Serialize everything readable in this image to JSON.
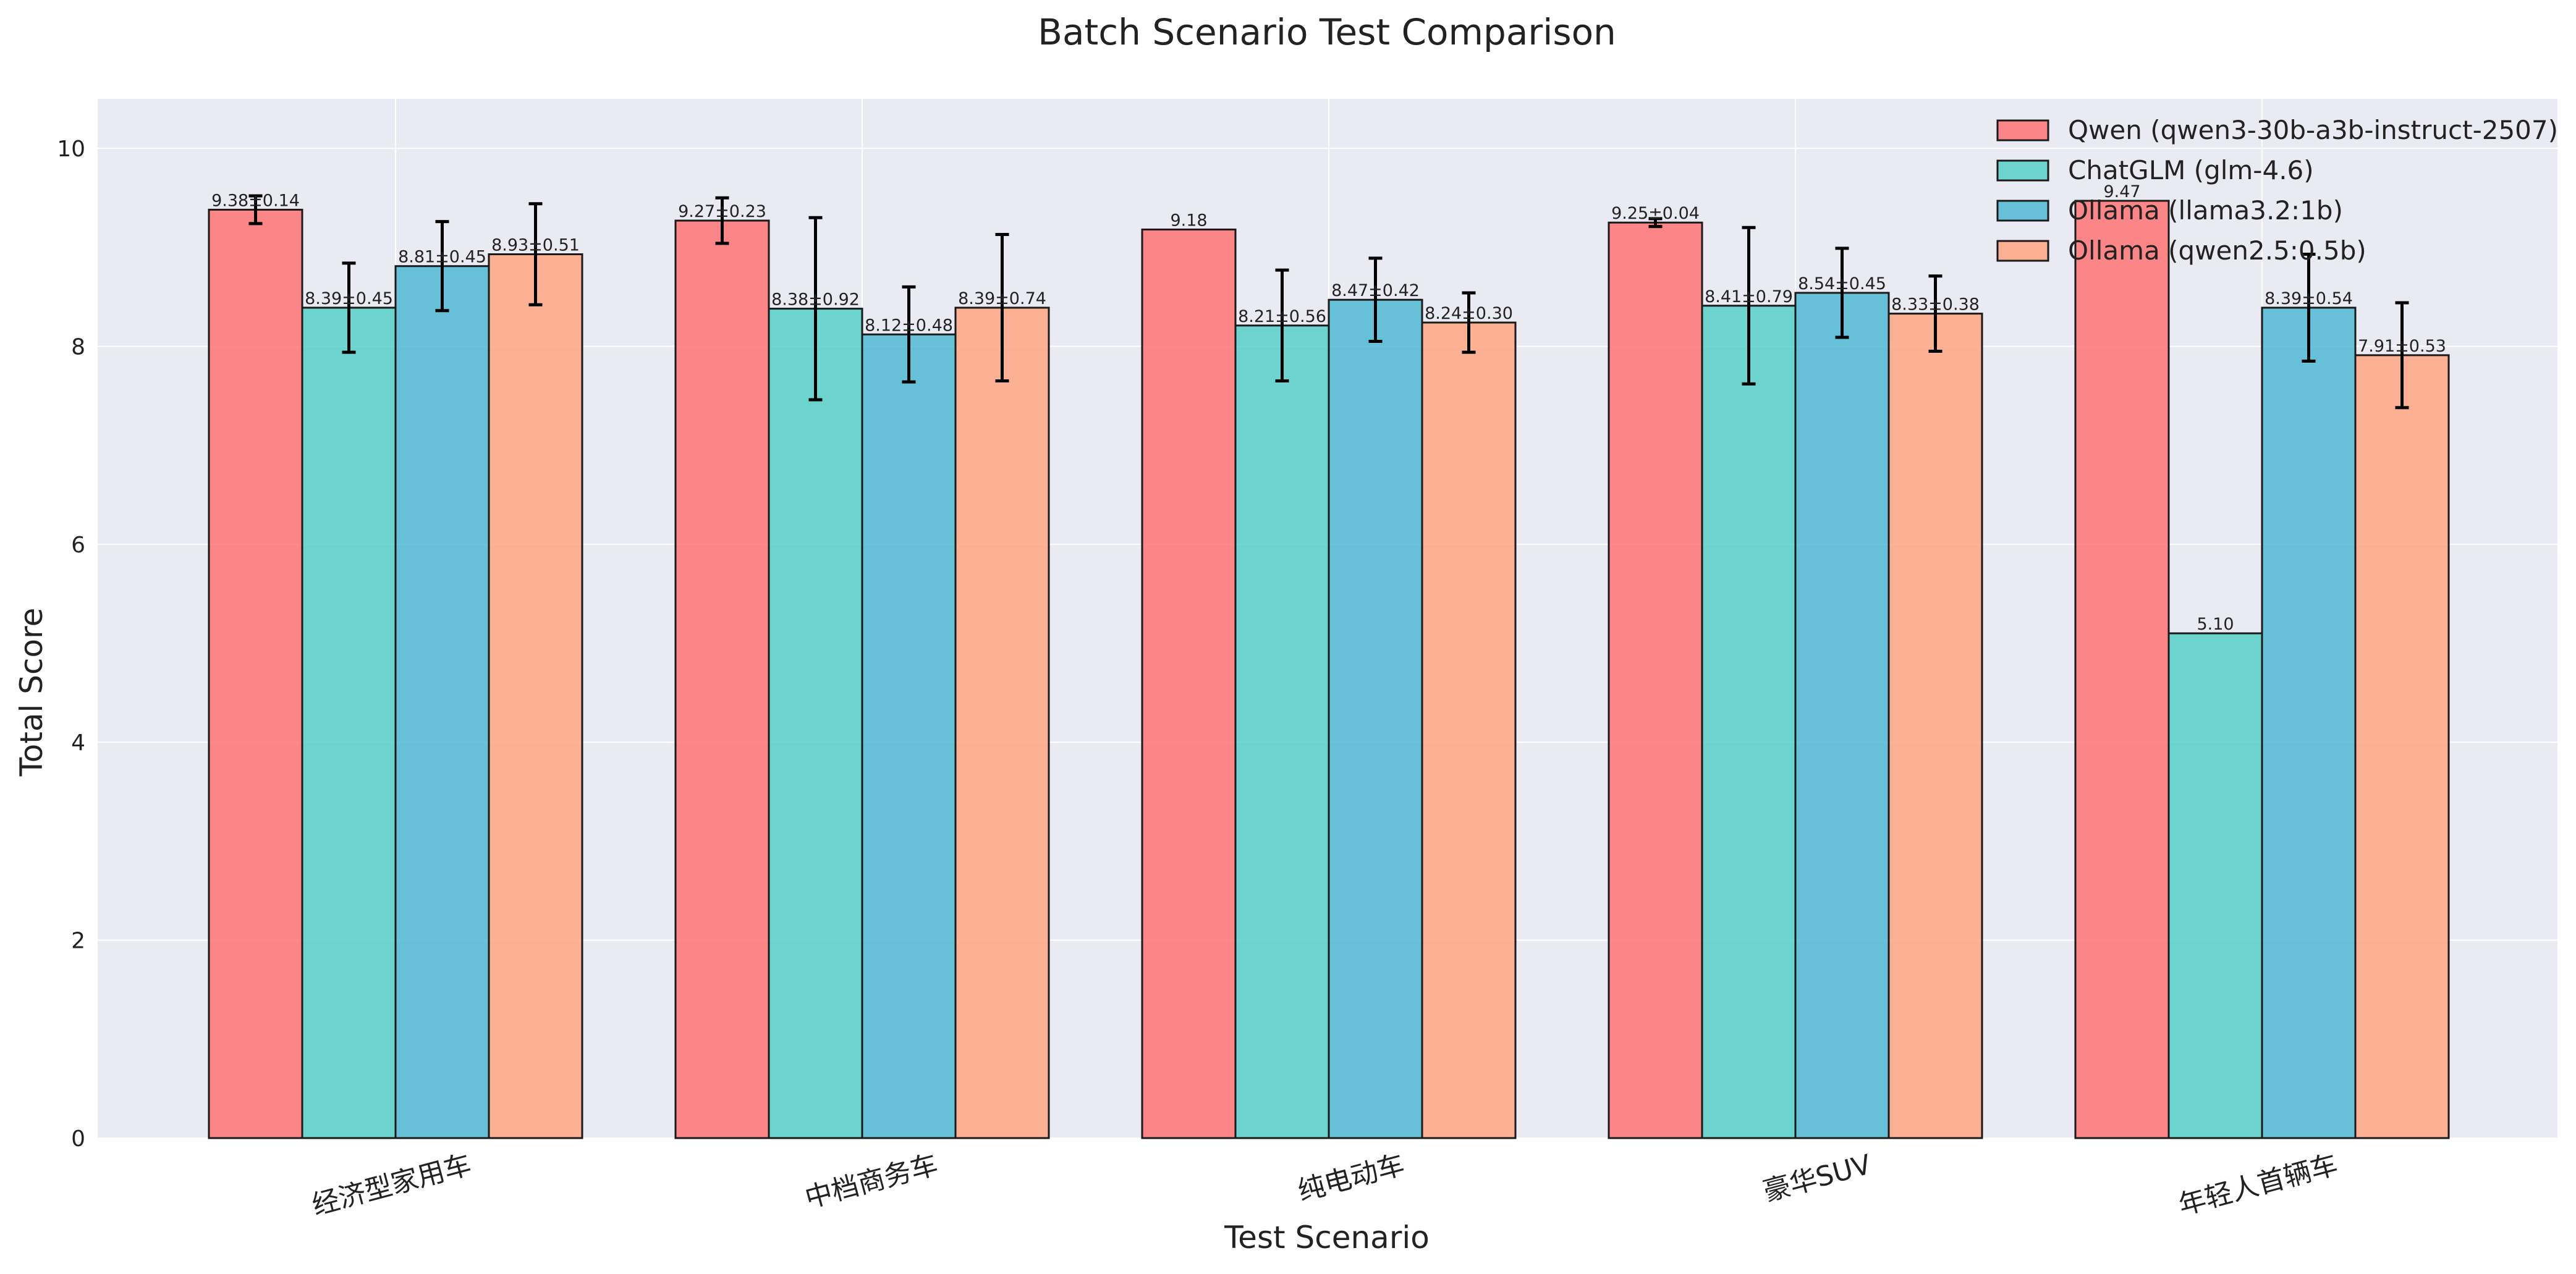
{
  "chart_data": {
    "type": "bar",
    "title": "Batch Scenario Test Comparison",
    "xlabel": "Test Scenario",
    "ylabel": "Total Score",
    "ylim": [
      0,
      10.5
    ],
    "yticks": [
      0,
      2,
      4,
      6,
      8,
      10
    ],
    "grid": true,
    "legend_position": "top-right",
    "categories": [
      "经济型家用车",
      "中档商务车",
      "纯电动车",
      "豪华SUV",
      "年轻人首辆车"
    ],
    "series": [
      {
        "name": "Qwen (qwen3-30b-a3b-instruct-2507)",
        "color": "#FF6B6B",
        "values": [
          9.38,
          9.27,
          9.18,
          9.25,
          9.47
        ],
        "errors": [
          0.14,
          0.23,
          0,
          0.04,
          0
        ],
        "labels": [
          "9.38±0.14",
          "9.27±0.23",
          "9.18",
          "9.25±0.04",
          "9.47"
        ]
      },
      {
        "name": "ChatGLM (glm-4.6)",
        "color": "#4ECDC4",
        "values": [
          8.39,
          8.38,
          8.21,
          8.41,
          5.1
        ],
        "errors": [
          0.45,
          0.92,
          0.56,
          0.79,
          0
        ],
        "labels": [
          "8.39±0.45",
          "8.38±0.92",
          "8.21±0.56",
          "8.41±0.79",
          "5.10"
        ]
      },
      {
        "name": "Ollama (llama3.2:1b)",
        "color": "#45B7D1",
        "values": [
          8.81,
          8.12,
          8.47,
          8.54,
          8.39
        ],
        "errors": [
          0.45,
          0.48,
          0.42,
          0.45,
          0.54
        ],
        "labels": [
          "8.81±0.45",
          "8.12±0.48",
          "8.47±0.42",
          "8.54±0.45",
          "8.39±0.54"
        ]
      },
      {
        "name": "Ollama (qwen2.5:0.5b)",
        "color": "#FFA07A",
        "values": [
          8.93,
          8.39,
          8.24,
          8.33,
          7.91
        ],
        "errors": [
          0.51,
          0.74,
          0.3,
          0.38,
          0.53
        ],
        "labels": [
          "8.93±0.51",
          "8.39±0.74",
          "8.24±0.30",
          "8.33±0.38",
          "7.91±0.53"
        ]
      }
    ]
  }
}
